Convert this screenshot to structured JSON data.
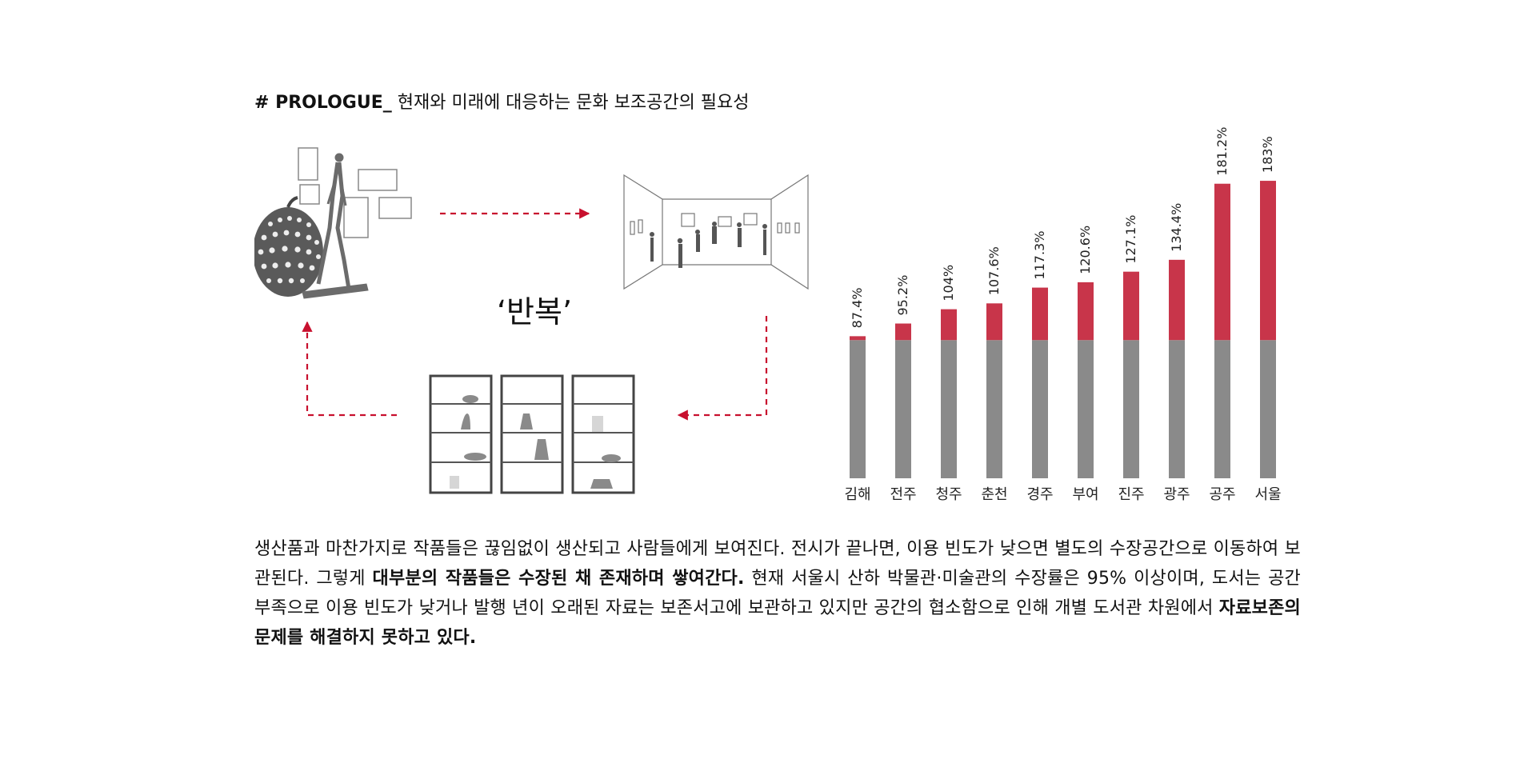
{
  "heading": {
    "tag": "# PROLOGUE_",
    "title": "현재와 미래에 대응하는 문화 보조공간의 필요성"
  },
  "cycle": {
    "label": "‘반복’",
    "arrow_color": "#c8102e"
  },
  "chart_data": {
    "type": "bar",
    "categories": [
      "김해",
      "전주",
      "청주",
      "춘천",
      "경주",
      "부여",
      "진주",
      "광주",
      "공주",
      "서울"
    ],
    "values": [
      87.4,
      95.2,
      104,
      107.6,
      117.3,
      120.6,
      127.1,
      134.4,
      181.2,
      183
    ],
    "value_labels": [
      "87.4%",
      "95.2%",
      "104%",
      "107.6%",
      "117.3%",
      "120.6%",
      "127.1%",
      "134.4%",
      "181.2%",
      "183%"
    ],
    "baseline": 85,
    "ylim": [
      0,
      185
    ],
    "colors": {
      "base": "#8a8a8a",
      "excess": "#c8354a"
    },
    "title": "",
    "xlabel": "",
    "ylabel": "",
    "grid": false
  },
  "body": {
    "p1": "생산품과 마찬가지로 작품들은 끊임없이 생산되고 사람들에게 보여진다. 전시가 끝나면, 이용 빈도가 낮으면 별도의 수장공간으로 이동하여 보관된다. 그렇게 ",
    "b1": "대부분의 작품들은 수장된 채 존재하며 쌓여간다.",
    "p2": " 현재 서울시 산하 박물관·미술관의 수장률은 95% 이상이며, 도서는 공간 부족으로 이용 빈도가 낮거나 발행 년이 오래된 자료는 보존서고에 보관하고 있지만 공간의 협소함으로 인해 개별 도서관 차원에서 ",
    "b2": "자료보존의 문제를 해결하지 못하고 있다."
  }
}
